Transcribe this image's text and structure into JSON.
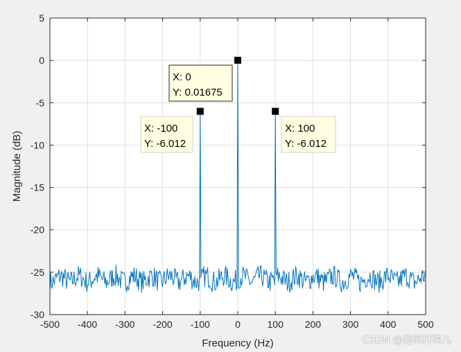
{
  "chart_data": {
    "type": "line",
    "xlabel": "Frequency (Hz)",
    "ylabel": "Magnitude (dB)",
    "xlim": [
      -500,
      500
    ],
    "ylim": [
      -30,
      5
    ],
    "x_ticks": [
      -500,
      -400,
      -300,
      -200,
      -100,
      0,
      100,
      200,
      300,
      400,
      500
    ],
    "y_ticks": [
      5,
      0,
      -5,
      -10,
      -15,
      -20,
      -25,
      -30
    ],
    "x_tick_labels": [
      "-500",
      "-400",
      "-300",
      "-200",
      "-100",
      "0",
      "100",
      "200",
      "300",
      "400",
      "500"
    ],
    "y_tick_labels": [
      "5",
      "0",
      "-5",
      "-10",
      "-15",
      "-20",
      "-25",
      "-30"
    ],
    "grid": true,
    "series": [
      {
        "color": "#0072bd",
        "noise_floor_db": -25.8,
        "noise_ripple_db": 1.3,
        "peaks": [
          {
            "x": -100,
            "y": -6.012
          },
          {
            "x": 0,
            "y": 0.01675
          },
          {
            "x": 100,
            "y": -6.012
          }
        ]
      }
    ],
    "datatips": [
      {
        "x_label": "X: 0",
        "y_label": "Y: 0.01675",
        "x": 0,
        "y": 0.01675
      },
      {
        "x_label": "X: -100",
        "y_label": "Y: -6.012",
        "x": -100,
        "y": -6.012
      },
      {
        "x_label": "X: 100",
        "y_label": "Y: -6.012",
        "x": 100,
        "y": -6.012
      }
    ]
  },
  "watermark": "CSDN @迎风打盹儿"
}
